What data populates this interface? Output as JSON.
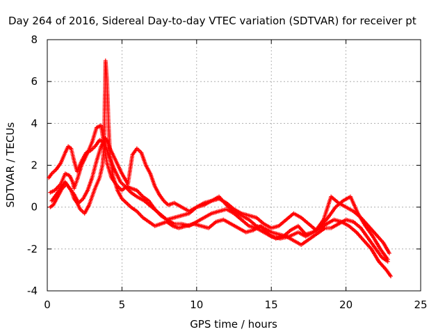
{
  "chart_data": {
    "type": "scatter",
    "title": "Day 264 of 2016, Sidereal Day-to-day VTEC variation (SDTVAR) for receiver pt",
    "xlabel": "GPS time / hours",
    "ylabel": "SDTVAR / TECUs",
    "xlim": [
      0,
      25
    ],
    "ylim": [
      -4,
      8
    ],
    "xticks": [
      "0",
      "5",
      "10",
      "15",
      "20",
      "25"
    ],
    "yticks": [
      "-4",
      "-2",
      "0",
      "2",
      "4",
      "6",
      "8"
    ],
    "grid": true,
    "marker": "+",
    "color": "#ff0000",
    "series": [
      {
        "x": [
          0.2,
          0.5,
          0.9,
          1.2,
          1.5,
          1.7,
          1.8,
          2.0,
          2.3,
          2.7,
          3.0,
          3.3,
          3.6,
          3.8,
          4.0,
          4.3,
          4.7,
          5.0,
          5.3,
          5.6,
          6.0,
          6.4,
          6.8,
          7.2,
          7.6,
          8.0,
          8.5,
          9.0,
          9.5,
          10.0,
          10.5,
          11.0,
          11.5,
          12.0,
          12.5,
          13.0,
          13.5,
          14.0,
          14.5,
          15.0,
          15.5,
          16.0,
          16.5,
          17.0,
          17.4,
          17.8,
          18.2,
          18.6,
          19.0,
          19.5,
          20.0,
          20.5,
          21.0,
          21.5,
          22.0,
          22.4,
          22.8
        ],
        "y": [
          0.7,
          0.8,
          1.1,
          1.6,
          1.5,
          1.2,
          0.9,
          1.3,
          2.0,
          2.6,
          3.1,
          3.8,
          3.9,
          3.0,
          2.1,
          1.4,
          1.0,
          0.8,
          1.0,
          0.9,
          0.8,
          0.5,
          0.3,
          -0.1,
          -0.4,
          -0.6,
          -0.5,
          -0.4,
          -0.3,
          0.0,
          0.2,
          0.3,
          0.5,
          0.1,
          -0.2,
          -0.4,
          -0.6,
          -0.9,
          -1.0,
          -1.2,
          -1.3,
          -1.4,
          -1.6,
          -1.8,
          -1.6,
          -1.4,
          -1.2,
          -1.0,
          -1.0,
          -0.8,
          -0.6,
          -0.7,
          -1.0,
          -1.5,
          -2.0,
          -2.4,
          -2.6
        ]
      },
      {
        "x": [
          0.1,
          0.3,
          0.6,
          0.9,
          1.2,
          1.4,
          1.6,
          1.8,
          2.0,
          2.3,
          2.6,
          2.9,
          3.2,
          3.5,
          3.8,
          4.1,
          4.5,
          4.9,
          5.2,
          5.6,
          6.0,
          6.5,
          7.0,
          7.5,
          8.0,
          8.5,
          9.0,
          9.5,
          10.0,
          10.5,
          11.0,
          11.5,
          12.0,
          12.5,
          13.0,
          13.5,
          14.0,
          14.5,
          15.0,
          15.6,
          16.2,
          16.8,
          17.3,
          17.8,
          18.3,
          18.8,
          19.3,
          19.8,
          20.3,
          20.8,
          21.3,
          21.8,
          22.3,
          22.8
        ],
        "y": [
          1.4,
          1.6,
          1.8,
          2.1,
          2.6,
          2.9,
          2.8,
          2.2,
          1.7,
          2.2,
          2.6,
          2.7,
          2.9,
          3.2,
          3.1,
          2.5,
          1.8,
          1.2,
          1.0,
          0.7,
          0.5,
          0.3,
          0.0,
          -0.3,
          -0.6,
          -0.8,
          -0.8,
          -0.9,
          -0.7,
          -0.5,
          -0.3,
          -0.2,
          -0.1,
          -0.3,
          -0.6,
          -0.9,
          -1.0,
          -1.2,
          -1.4,
          -1.5,
          -1.4,
          -1.2,
          -1.4,
          -1.2,
          -0.9,
          -0.5,
          0.0,
          0.3,
          0.5,
          -0.3,
          -0.9,
          -1.4,
          -2.0,
          -2.5
        ]
      },
      {
        "x": [
          0.2,
          0.4,
          0.7,
          1.0,
          1.3,
          1.6,
          1.8,
          2.0,
          2.2,
          2.5,
          2.8,
          3.0,
          3.2,
          3.5,
          3.7,
          3.8,
          3.9,
          4.0,
          4.1,
          4.2,
          4.4,
          4.7,
          5.0,
          5.3,
          5.6,
          6.0,
          6.4,
          6.8,
          7.2,
          7.6,
          8.0,
          8.4,
          8.8,
          9.3,
          9.8,
          10.3,
          10.8,
          11.3,
          11.8,
          12.3,
          12.8,
          13.3,
          13.8,
          14.3,
          14.8,
          15.3,
          15.8,
          16.3,
          16.8,
          17.3,
          17.8,
          18.3,
          18.7,
          19.2,
          19.7,
          20.2,
          20.7,
          21.2,
          21.7,
          22.2,
          22.7,
          23.0
        ],
        "y": [
          0.0,
          0.1,
          0.5,
          0.9,
          1.1,
          0.8,
          0.4,
          0.2,
          -0.1,
          -0.3,
          0.1,
          0.5,
          0.9,
          1.4,
          2.0,
          3.0,
          7.0,
          6.0,
          4.0,
          2.5,
          1.5,
          0.8,
          0.4,
          0.2,
          0.0,
          -0.2,
          -0.5,
          -0.7,
          -0.9,
          -0.8,
          -0.7,
          -0.9,
          -1.0,
          -0.9,
          -0.8,
          -0.9,
          -1.0,
          -0.7,
          -0.6,
          -0.8,
          -1.0,
          -1.2,
          -1.1,
          -0.9,
          -1.3,
          -1.5,
          -1.4,
          -1.1,
          -0.9,
          -1.3,
          -1.2,
          -1.0,
          -0.8,
          -0.6,
          -0.7,
          -0.9,
          -1.2,
          -1.6,
          -2.0,
          -2.6,
          -3.0,
          -3.3
        ]
      },
      {
        "x": [
          0.3,
          0.6,
          0.9,
          1.2,
          1.5,
          1.8,
          2.1,
          2.4,
          2.7,
          3.0,
          3.3,
          3.6,
          3.9,
          4.2,
          4.6,
          5.0,
          5.4,
          5.7,
          6.0,
          6.3,
          6.6,
          6.9,
          7.2,
          7.5,
          7.8,
          8.1,
          8.5,
          9.0,
          9.5,
          10.0,
          10.5,
          11.0,
          11.5,
          12.0,
          12.5,
          13.0,
          13.5,
          14.0,
          14.5,
          15.0,
          15.5,
          16.0,
          16.5,
          17.0,
          17.5,
          18.0,
          18.5,
          19.0,
          19.5,
          20.0,
          20.5,
          21.0,
          21.5,
          22.0,
          22.5,
          22.9
        ],
        "y": [
          0.3,
          0.6,
          0.9,
          1.2,
          0.9,
          0.6,
          0.2,
          0.4,
          0.8,
          1.4,
          2.2,
          2.9,
          3.3,
          2.8,
          2.2,
          1.6,
          1.1,
          2.5,
          2.8,
          2.6,
          2.0,
          1.6,
          1.0,
          0.6,
          0.3,
          0.1,
          0.2,
          0.0,
          -0.2,
          0.0,
          0.1,
          0.3,
          0.4,
          0.2,
          -0.1,
          -0.3,
          -0.4,
          -0.5,
          -0.8,
          -1.0,
          -0.9,
          -0.6,
          -0.3,
          -0.5,
          -0.8,
          -1.1,
          -0.6,
          0.5,
          0.2,
          0.0,
          -0.2,
          -0.5,
          -0.9,
          -1.3,
          -1.7,
          -2.2
        ]
      }
    ]
  }
}
